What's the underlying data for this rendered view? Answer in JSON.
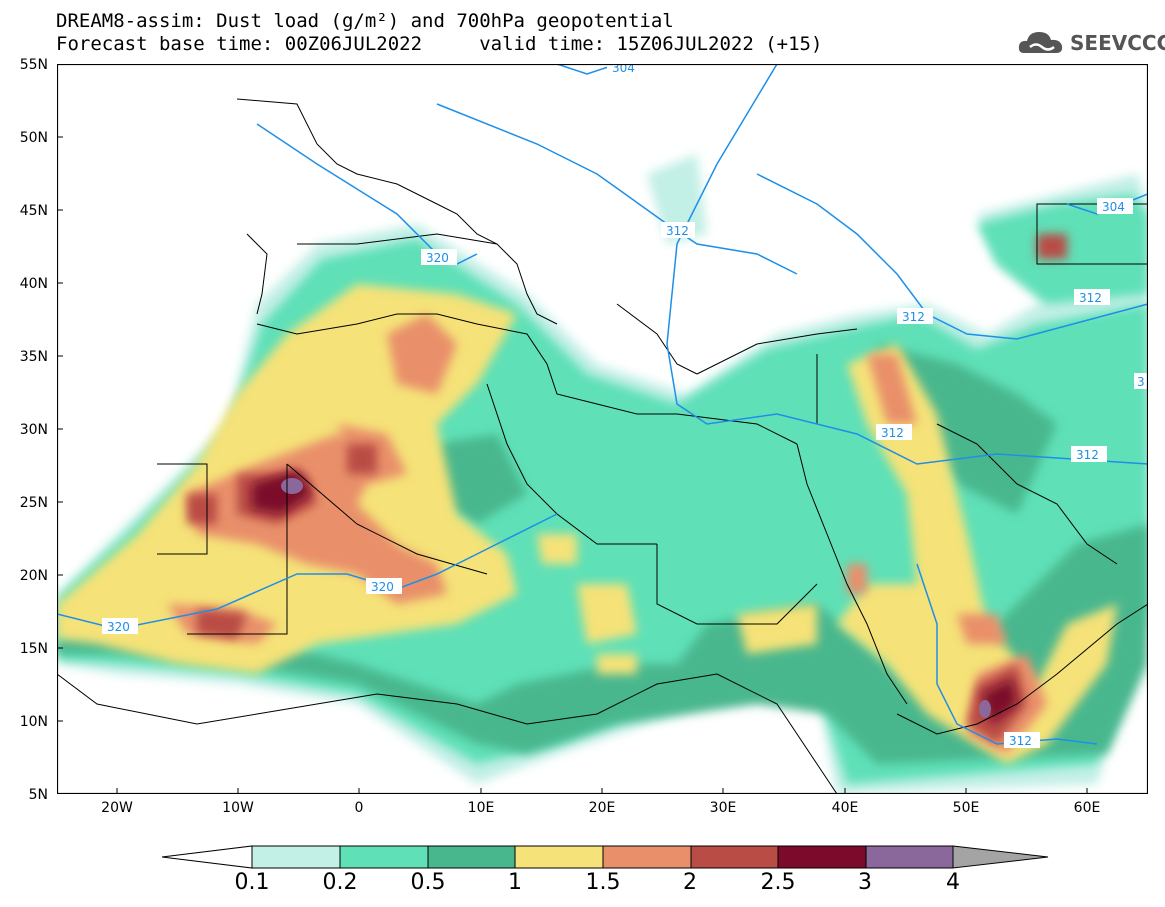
{
  "title_line1": "DREAM8-assim: Dust load (g/m²) and 700hPa geopotential",
  "title_line2": "Forecast base time: 00Z06JUL2022     valid time: 15Z06JUL2022 (+15)",
  "logo_text": "SEEVCCC",
  "lat_labels": [
    "55N",
    "50N",
    "45N",
    "40N",
    "35N",
    "30N",
    "25N",
    "20N",
    "15N",
    "10N",
    "5N"
  ],
  "lon_labels": [
    "20W",
    "10W",
    "0",
    "10E",
    "20E",
    "30E",
    "40E",
    "50E",
    "60E"
  ],
  "contour_labels": [
    "304",
    "304",
    "312",
    "312",
    "312",
    "320",
    "320",
    "320",
    "312",
    "312",
    "312",
    "3"
  ],
  "colorbar": {
    "ticks": [
      "0.1",
      "0.2",
      "0.5",
      "1",
      "1.5",
      "2",
      "2.5",
      "3",
      "4"
    ],
    "colors": [
      "#c2efe6",
      "#5fe0b7",
      "#49b78e",
      "#f5e278",
      "#e9906b",
      "#b94c45",
      "#7c0a2b",
      "#8b689c"
    ],
    "below_color": "#ffffff",
    "above_color": "#a4a4a4"
  },
  "colors": {
    "level1": "#c2efe6",
    "level2": "#5fe0b7",
    "level3": "#49b78e",
    "level4": "#f5e278",
    "level5": "#e9906b",
    "level6": "#b94c45",
    "level7": "#7c0a2b",
    "level8": "#8b689c",
    "contour": "#1e8fe8"
  }
}
